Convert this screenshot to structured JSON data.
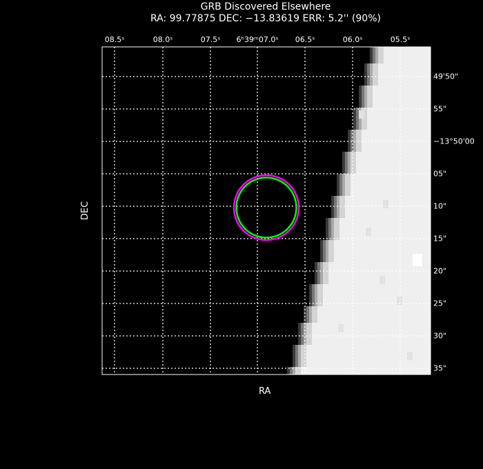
{
  "chart_data": {
    "type": "scatter",
    "title": "GRB Discovered Elsewhere",
    "subtitle": "RA: 99.77875   DEC: −13.83619   ERR: 5.2'' (90%)",
    "xlabel": "RA",
    "ylabel": "DEC",
    "grid": true,
    "x_tick_labels": [
      "08.5ˢ",
      "08.0ˢ",
      "07.5ˢ",
      "6ʰ39ᵐ07.0ˢ",
      "06.5ˢ",
      "06.0ˢ",
      "05.5ˢ"
    ],
    "y_tick_labels": [
      "49'50\"",
      "55\"",
      "−13°50'00",
      "05\"",
      "10\"",
      "15\"",
      "20\"",
      "25\"",
      "30\"",
      "35\""
    ],
    "error_circle": {
      "ra_deg": 99.77875,
      "dec_deg": -13.83619,
      "radius_arcsec": 5.2,
      "confidence": "90%"
    },
    "colors": {
      "outer_circle": "#ff00ff",
      "inner_circle": "#00ff00",
      "background": "#000000",
      "grid": "#ffffff"
    }
  }
}
